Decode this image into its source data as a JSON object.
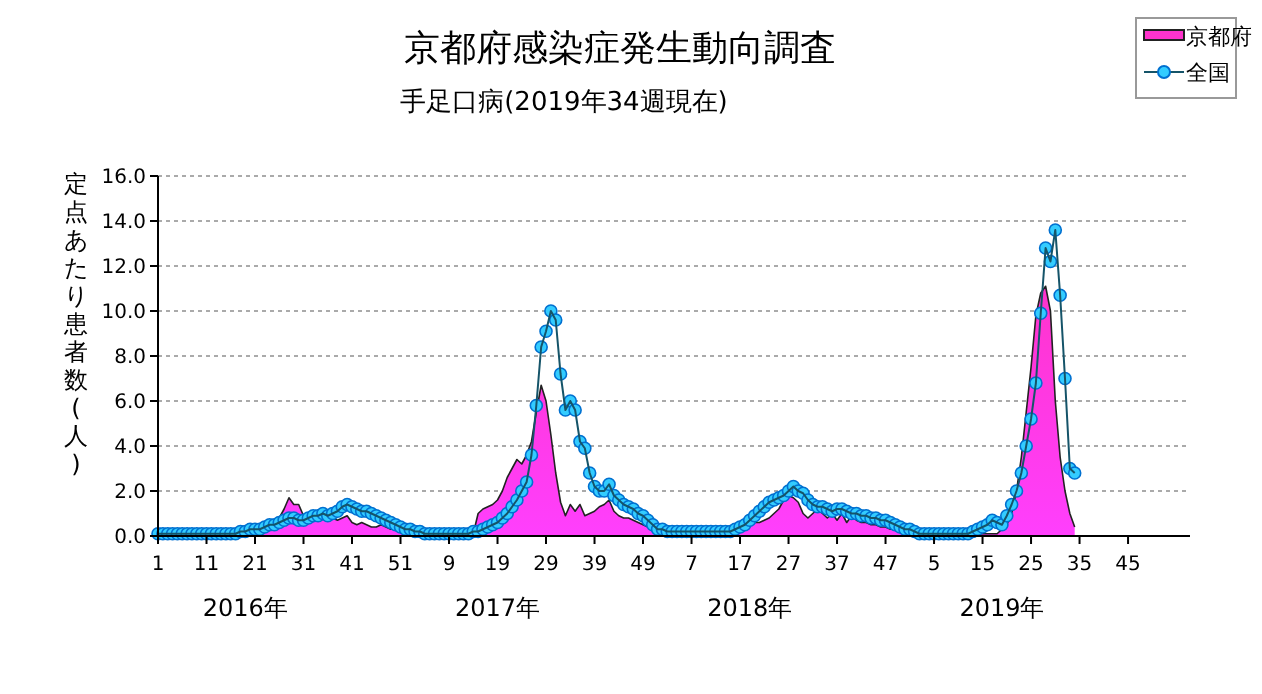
{
  "chart_data": {
    "type": "line",
    "title": "京都府感染症発生動向調査",
    "subtitle": "手足口病(2019年34週現在)",
    "ylabel": "定点あたり患者数(人)",
    "annotations": [
      "2016年",
      "2017年",
      "2018年",
      "2019年"
    ],
    "categories": [
      "1",
      null,
      null,
      null,
      null,
      null,
      null,
      null,
      null,
      null,
      "11",
      null,
      null,
      null,
      null,
      null,
      null,
      null,
      null,
      null,
      "21",
      null,
      null,
      null,
      null,
      null,
      null,
      null,
      null,
      null,
      "31",
      null,
      null,
      null,
      null,
      null,
      null,
      null,
      null,
      null,
      "41",
      null,
      null,
      null,
      null,
      null,
      null,
      null,
      null,
      null,
      "51",
      null,
      null,
      null,
      null,
      null,
      null,
      null,
      null,
      null,
      "9",
      null,
      null,
      null,
      null,
      null,
      null,
      null,
      null,
      null,
      "19",
      null,
      null,
      null,
      null,
      null,
      null,
      null,
      null,
      null,
      "29",
      null,
      null,
      null,
      null,
      null,
      null,
      null,
      null,
      null,
      "39",
      null,
      null,
      null,
      null,
      null,
      null,
      null,
      null,
      null,
      "49",
      null,
      null,
      null,
      null,
      null,
      null,
      null,
      null,
      null,
      "7",
      null,
      null,
      null,
      null,
      null,
      null,
      null,
      null,
      null,
      "17",
      null,
      null,
      null,
      null,
      null,
      null,
      null,
      null,
      null,
      "27",
      null,
      null,
      null,
      null,
      null,
      null,
      null,
      null,
      null,
      "37",
      null,
      null,
      null,
      null,
      null,
      null,
      null,
      null,
      null,
      "47",
      null,
      null,
      null,
      null,
      null,
      null,
      null,
      null,
      null,
      "5",
      null,
      null,
      null,
      null,
      null,
      null,
      null,
      null,
      null,
      "15",
      null,
      null,
      null,
      null,
      null,
      null,
      null,
      null,
      null,
      "25",
      null,
      null,
      null,
      null,
      null,
      null,
      null,
      null,
      null,
      "35",
      null,
      null,
      null,
      null,
      null,
      null,
      null,
      null,
      null,
      "45",
      null,
      null,
      null,
      null,
      null,
      null,
      null
    ],
    "series": [
      {
        "name": "京都府",
        "type": "area",
        "color": "#ff33cc",
        "values": [
          0,
          0,
          0,
          0,
          0,
          0,
          0,
          0,
          0,
          0,
          0,
          0,
          0,
          0,
          0,
          0,
          0,
          0,
          0,
          0,
          0.1,
          0.2,
          0.3,
          0.5,
          0.6,
          0.8,
          1.2,
          1.7,
          1.4,
          1.4,
          0.9,
          0.8,
          0.8,
          0.9,
          1.2,
          0.9,
          0.8,
          0.7,
          0.8,
          0.9,
          0.6,
          0.5,
          0.6,
          0.5,
          0.4,
          0.4,
          0.5,
          0.4,
          0.3,
          0.3,
          0.2,
          0.2,
          0.1,
          0.1,
          0.1,
          0.1,
          0.1,
          0.1,
          0.1,
          0.1,
          0.1,
          0.1,
          0.1,
          0.1,
          0.1,
          0.1,
          1.0,
          1.2,
          1.3,
          1.4,
          1.6,
          2.0,
          2.6,
          3.0,
          3.4,
          3.2,
          3.6,
          4.2,
          5.5,
          6.7,
          6.0,
          4.5,
          2.8,
          1.5,
          0.9,
          1.4,
          1.1,
          1.4,
          0.9,
          1.0,
          1.1,
          1.3,
          1.4,
          1.6,
          1.1,
          0.9,
          0.8,
          0.8,
          0.7,
          0.6,
          0.5,
          0.4,
          0.3,
          0.3,
          0.1,
          0.1,
          0.1,
          0.1,
          0.1,
          0.1,
          0.1,
          0.1,
          0.1,
          0.1,
          0.1,
          0.1,
          0.1,
          0.1,
          0.1,
          0.1,
          0.3,
          0.4,
          0.5,
          0.6,
          0.6,
          0.7,
          0.8,
          1.0,
          1.2,
          1.6,
          1.8,
          1.7,
          1.5,
          1.0,
          0.8,
          1.0,
          1.2,
          1.0,
          0.8,
          1.0,
          0.7,
          1.0,
          0.6,
          0.9,
          0.7,
          0.6,
          0.6,
          0.5,
          0.5,
          0.4,
          0.4,
          0.3,
          0.3,
          0.2,
          0.2,
          0.2,
          0.1,
          0.1,
          0.1,
          0.1,
          0.1,
          0.1,
          0.1,
          0.1,
          0.1,
          0.1,
          0.1,
          0.1,
          0.1,
          0.1,
          0.1,
          0.1,
          0.1,
          0.1,
          0.3,
          0.5,
          1.0,
          2.0,
          3.5,
          5.5,
          7.5,
          9.8,
          10.8,
          11.1,
          10.0,
          6.0,
          3.5,
          2.0,
          1.0,
          0.4,
          null,
          null,
          null,
          null,
          null,
          null,
          null,
          null,
          null,
          null,
          null,
          null,
          null,
          null,
          null,
          null,
          null,
          null
        ]
      },
      {
        "name": "全国",
        "marker": "circle",
        "color": "#33ccff",
        "values": [
          0.1,
          0.1,
          0.1,
          0.1,
          0.1,
          0.1,
          0.1,
          0.1,
          0.1,
          0.1,
          0.1,
          0.1,
          0.1,
          0.1,
          0.1,
          0.1,
          0.1,
          0.2,
          0.2,
          0.3,
          0.3,
          0.3,
          0.4,
          0.5,
          0.5,
          0.6,
          0.7,
          0.8,
          0.8,
          0.7,
          0.7,
          0.8,
          0.9,
          0.9,
          1.0,
          0.9,
          1.0,
          1.1,
          1.3,
          1.4,
          1.3,
          1.2,
          1.1,
          1.1,
          1.0,
          0.9,
          0.8,
          0.7,
          0.6,
          0.5,
          0.4,
          0.3,
          0.3,
          0.2,
          0.2,
          0.1,
          0.1,
          0.1,
          0.1,
          0.1,
          0.1,
          0.1,
          0.1,
          0.1,
          0.1,
          0.2,
          0.2,
          0.3,
          0.4,
          0.5,
          0.6,
          0.8,
          1.0,
          1.3,
          1.6,
          2.0,
          2.4,
          3.6,
          5.8,
          8.4,
          9.1,
          10.0,
          9.6,
          7.2,
          5.6,
          6.0,
          5.6,
          4.2,
          3.9,
          2.8,
          2.2,
          2.0,
          2.0,
          2.3,
          1.8,
          1.6,
          1.4,
          1.3,
          1.2,
          1.0,
          0.9,
          0.7,
          0.5,
          0.3,
          0.3,
          0.2,
          0.2,
          0.2,
          0.2,
          0.2,
          0.2,
          0.2,
          0.2,
          0.2,
          0.2,
          0.2,
          0.2,
          0.2,
          0.2,
          0.3,
          0.4,
          0.5,
          0.7,
          0.9,
          1.1,
          1.3,
          1.5,
          1.6,
          1.7,
          1.8,
          2.0,
          2.2,
          2.0,
          1.9,
          1.6,
          1.4,
          1.3,
          1.3,
          1.2,
          1.1,
          1.2,
          1.2,
          1.1,
          1.0,
          1.0,
          0.9,
          0.9,
          0.8,
          0.8,
          0.7,
          0.7,
          0.6,
          0.5,
          0.4,
          0.3,
          0.3,
          0.2,
          0.1,
          0.1,
          0.1,
          0.1,
          0.1,
          0.1,
          0.1,
          0.1,
          0.1,
          0.1,
          0.1,
          0.2,
          0.3,
          0.4,
          0.5,
          0.7,
          0.6,
          0.5,
          0.9,
          1.4,
          2.0,
          2.8,
          4.0,
          5.2,
          6.8,
          9.9,
          12.8,
          12.2,
          13.6,
          10.7,
          7.0,
          3.0,
          2.8,
          null,
          null,
          null,
          null,
          null,
          null,
          null,
          null,
          null,
          null,
          null,
          null,
          null,
          null,
          null,
          null,
          null,
          null
        ]
      }
    ],
    "ylim": [
      0,
      16
    ],
    "yticks": [
      {
        "value": 0,
        "label": "0.0"
      },
      {
        "value": 2,
        "label": "2.0"
      },
      {
        "value": 4,
        "label": "4.0"
      },
      {
        "value": 6,
        "label": "6.0"
      },
      {
        "value": 8,
        "label": "8.0"
      },
      {
        "value": 10,
        "label": "10.0"
      },
      {
        "value": 12,
        "label": "12.0"
      },
      {
        "value": 14,
        "label": "14.0"
      },
      {
        "value": 16,
        "label": "16.0"
      }
    ],
    "grid": "y",
    "legend": "top right"
  }
}
